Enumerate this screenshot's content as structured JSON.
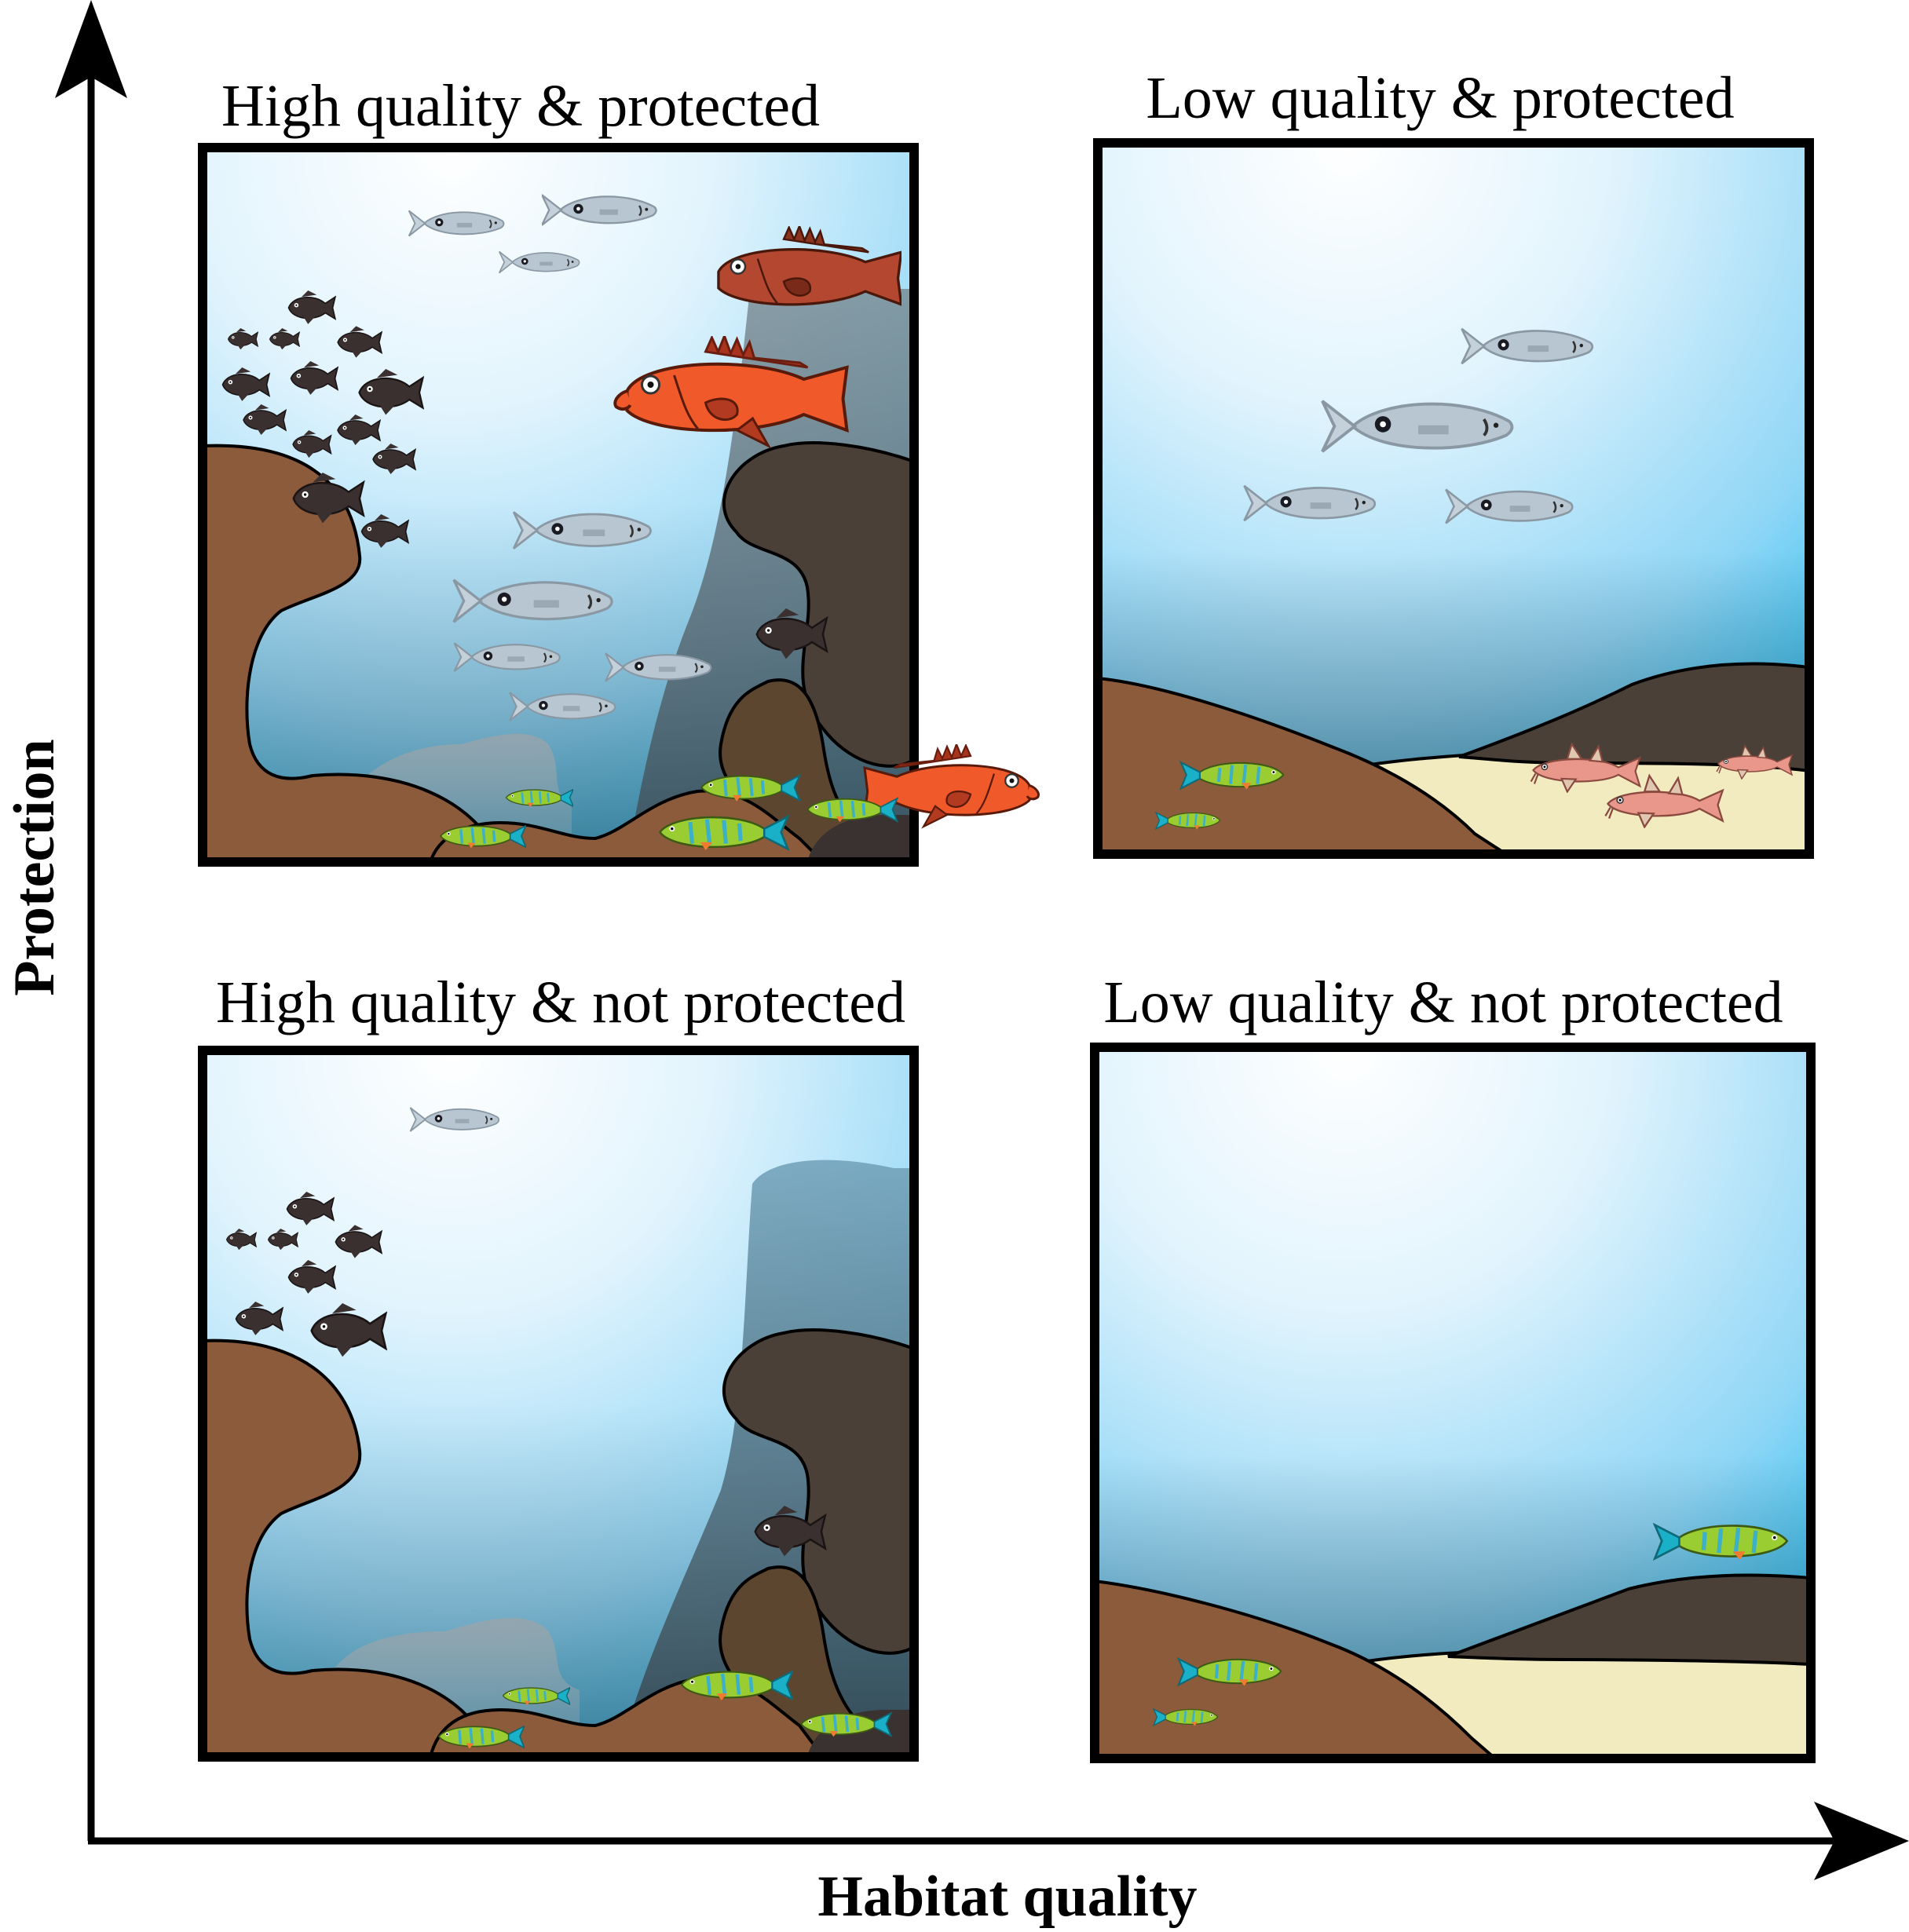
{
  "axes": {
    "y_label": "Protection",
    "x_label": "Habitat quality"
  },
  "quadrants": [
    {
      "key": "hq_protected",
      "title": "High quality & protected",
      "habitat": "high",
      "protected": true
    },
    {
      "key": "lq_protected",
      "title": "Low quality & protected",
      "habitat": "low",
      "protected": true
    },
    {
      "key": "hq_not_protected",
      "title": "High quality & not protected",
      "habitat": "high",
      "protected": false
    },
    {
      "key": "lq_not_protected",
      "title": "Low quality & not protected",
      "habitat": "low",
      "protected": false
    }
  ],
  "colors": {
    "water_light": "#ffffff",
    "water_deep": "#29c0f2",
    "reef_brown": "#8a5a3a",
    "reef_dark": "#4a4038",
    "reef_mid": "#5e4630",
    "sand": "#f2ebc0",
    "rockfish_red": "#f05a2a",
    "rockfish_dark_red": "#b8442a",
    "damselfish": "#3a3030",
    "silver_fish": "#b7c4d0",
    "wrasse_green": "#9acd32",
    "wrasse_blue": "#1ab0c8",
    "goatfish_pink": "#e89a8a"
  }
}
